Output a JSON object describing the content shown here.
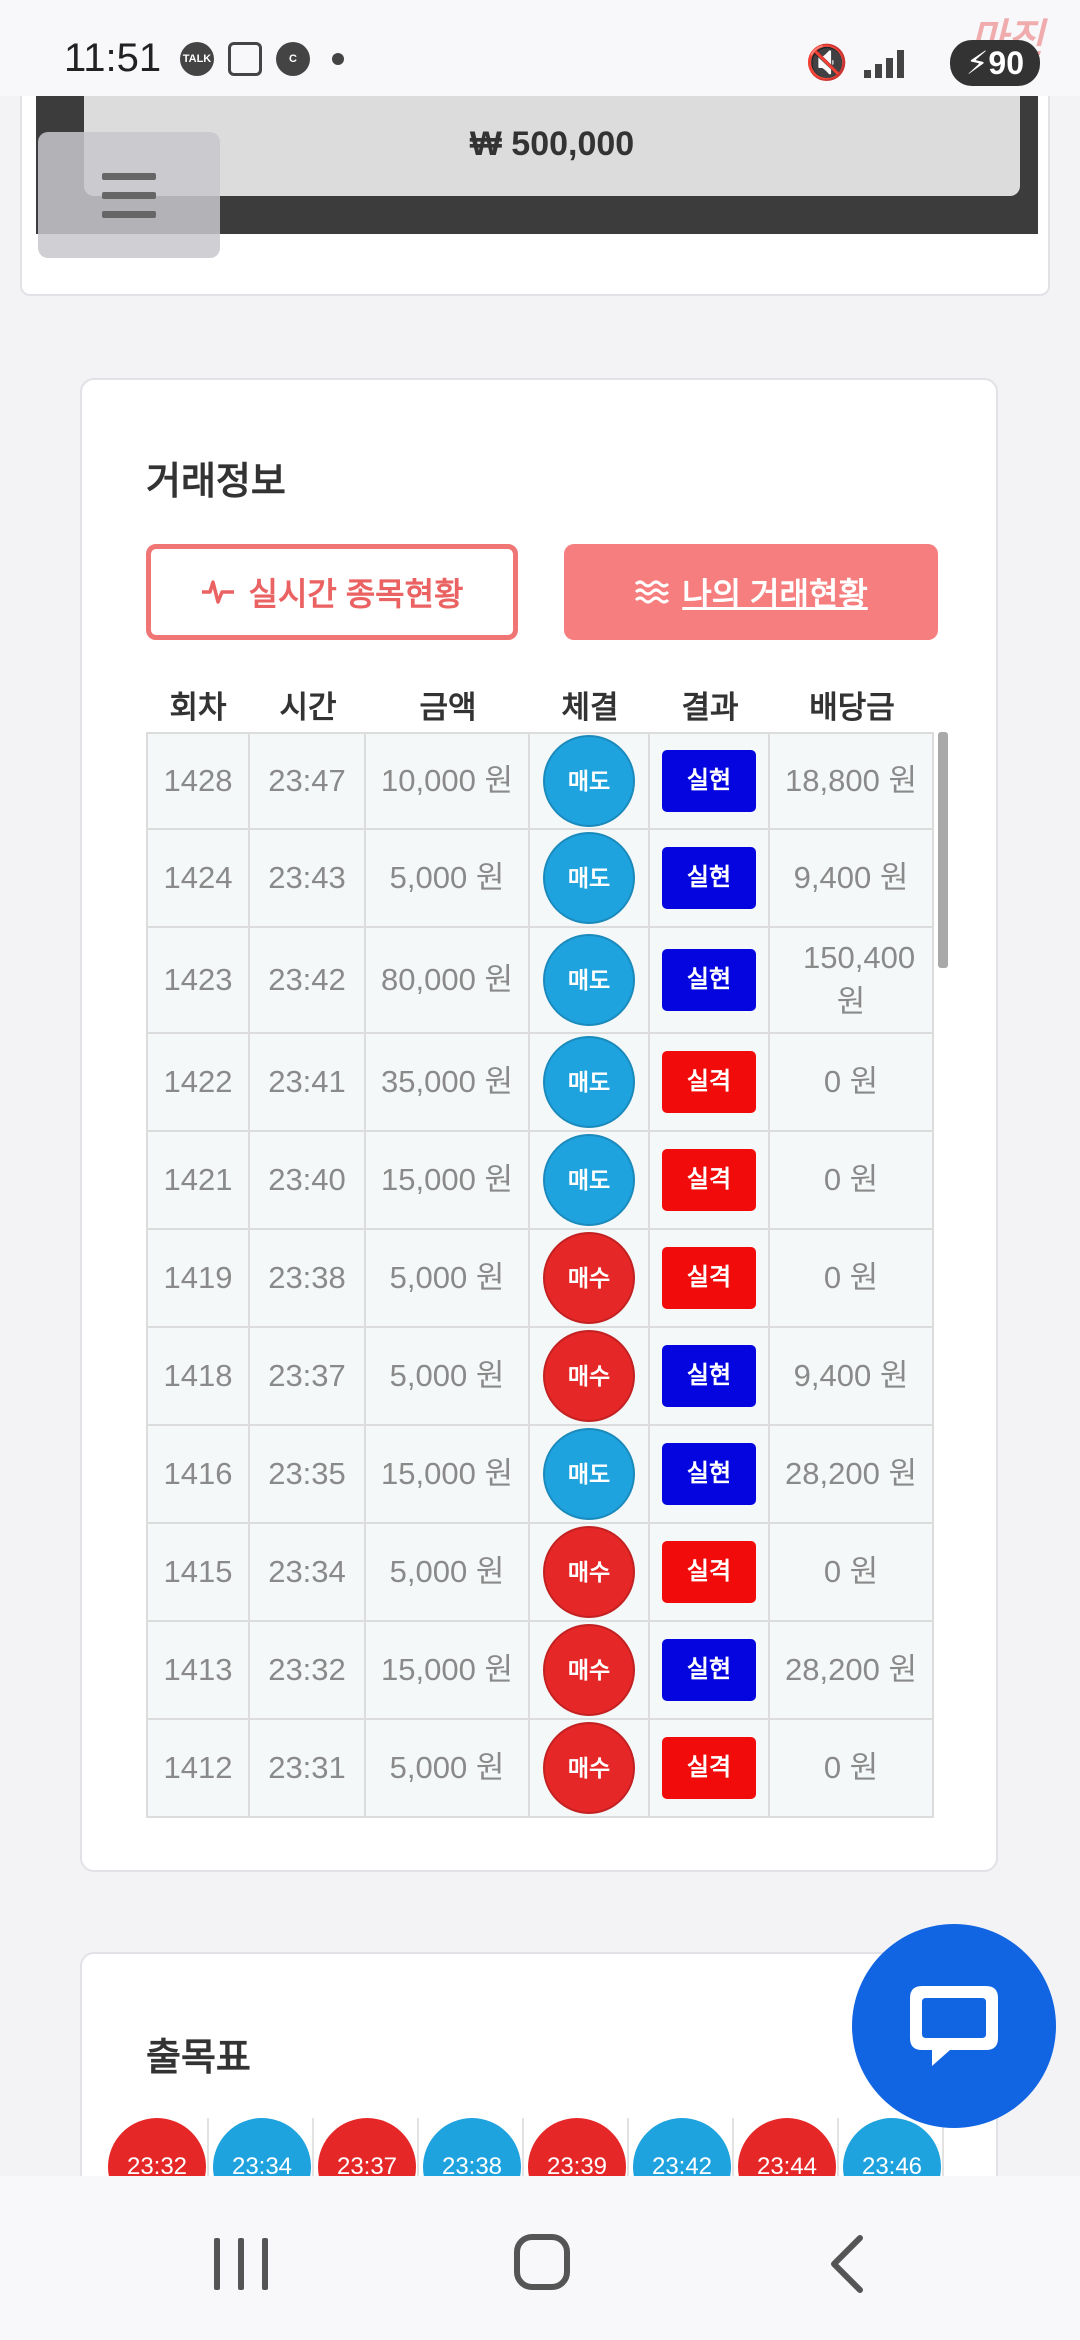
{
  "status_bar": {
    "time": "11:51",
    "talk_icon_label": "TALK",
    "c_icon_label": "C",
    "battery": "90",
    "watermark": "마진"
  },
  "balance": {
    "amount": "₩ 500,000"
  },
  "trade_info": {
    "title": "거래정보",
    "live_button": "실시간 종목현황",
    "mine_button": "나의 거래현황",
    "columns": [
      "회차",
      "시간",
      "금액",
      "체결",
      "결과",
      "배당금"
    ],
    "rows": [
      {
        "round": "1428",
        "time": "23:47",
        "amount": "10,000 원",
        "trade": "매도",
        "trade_type": "sell",
        "result": "실현",
        "result_type": "win",
        "payout": "18,800 원"
      },
      {
        "round": "1424",
        "time": "23:43",
        "amount": "5,000 원",
        "trade": "매도",
        "trade_type": "sell",
        "result": "실현",
        "result_type": "win",
        "payout": "9,400 원"
      },
      {
        "round": "1423",
        "time": "23:42",
        "amount": "80,000 원",
        "trade": "매도",
        "trade_type": "sell",
        "result": "실현",
        "result_type": "win",
        "payout": "150,400 원"
      },
      {
        "round": "1422",
        "time": "23:41",
        "amount": "35,000 원",
        "trade": "매도",
        "trade_type": "sell",
        "result": "실격",
        "result_type": "lose",
        "payout": "0 원"
      },
      {
        "round": "1421",
        "time": "23:40",
        "amount": "15,000 원",
        "trade": "매도",
        "trade_type": "sell",
        "result": "실격",
        "result_type": "lose",
        "payout": "0 원"
      },
      {
        "round": "1419",
        "time": "23:38",
        "amount": "5,000 원",
        "trade": "매수",
        "trade_type": "buy",
        "result": "실격",
        "result_type": "lose",
        "payout": "0 원"
      },
      {
        "round": "1418",
        "time": "23:37",
        "amount": "5,000 원",
        "trade": "매수",
        "trade_type": "buy",
        "result": "실현",
        "result_type": "win",
        "payout": "9,400 원"
      },
      {
        "round": "1416",
        "time": "23:35",
        "amount": "15,000 원",
        "trade": "매도",
        "trade_type": "sell",
        "result": "실현",
        "result_type": "win",
        "payout": "28,200 원"
      },
      {
        "round": "1415",
        "time": "23:34",
        "amount": "5,000 원",
        "trade": "매수",
        "trade_type": "buy",
        "result": "실격",
        "result_type": "lose",
        "payout": "0 원"
      },
      {
        "round": "1413",
        "time": "23:32",
        "amount": "15,000 원",
        "trade": "매수",
        "trade_type": "buy",
        "result": "실현",
        "result_type": "win",
        "payout": "28,200 원"
      },
      {
        "round": "1412",
        "time": "23:31",
        "amount": "5,000 원",
        "trade": "매수",
        "trade_type": "buy",
        "result": "실격",
        "result_type": "lose",
        "payout": "0 원"
      }
    ]
  },
  "schedule": {
    "title": "출목표",
    "chips": [
      {
        "time": "23:32",
        "type": "buy"
      },
      {
        "time": "23:34",
        "type": "sell"
      },
      {
        "time": "23:37",
        "type": "buy"
      },
      {
        "time": "23:38",
        "type": "sell"
      },
      {
        "time": "23:39",
        "type": "buy"
      },
      {
        "time": "23:42",
        "type": "sell"
      },
      {
        "time": "23:44",
        "type": "buy"
      },
      {
        "time": "23:46",
        "type": "sell"
      }
    ]
  },
  "colors": {
    "sell": "#1fa3de",
    "buy": "#e52727",
    "win": "#0505e0",
    "lose": "#f20b0b",
    "accent": "#f77e7e",
    "chat": "#1164e2"
  },
  "icons": {
    "live": "pulse-icon",
    "mine": "waves-icon",
    "chat": "chat-bubble-icon",
    "menu": "hamburger-icon"
  }
}
